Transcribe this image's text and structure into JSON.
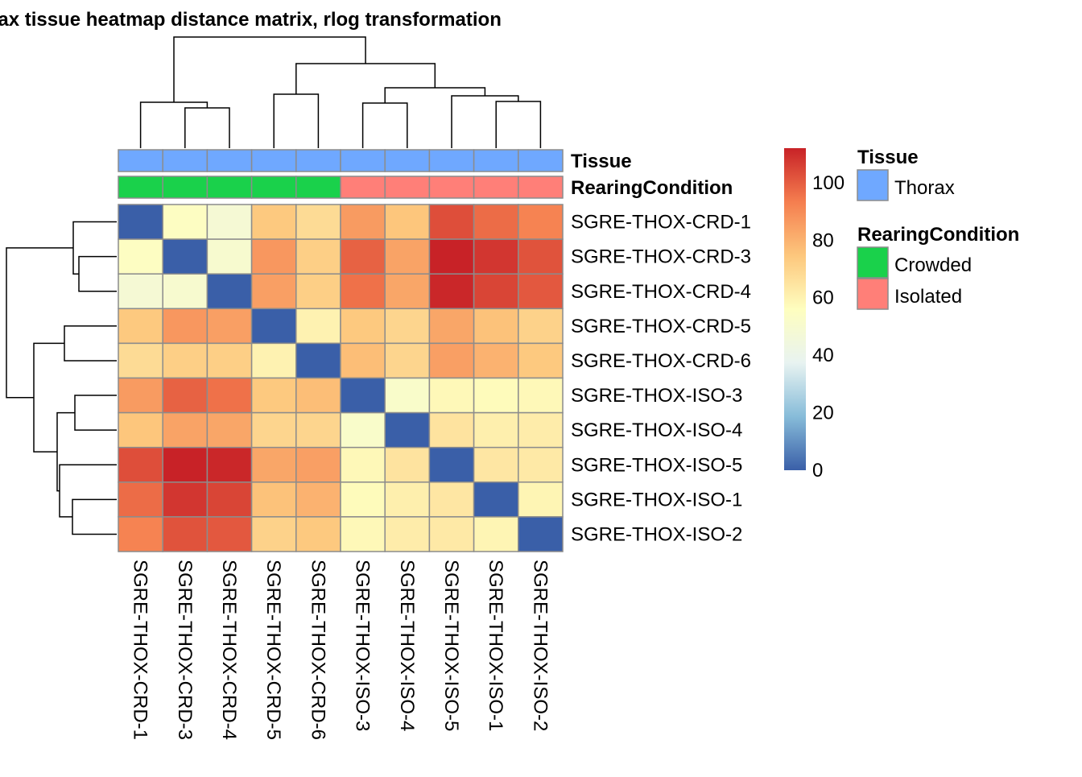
{
  "chart_data": {
    "type": "heatmap",
    "title": "rax tissue heatmap distance matrix, rlog transformation",
    "rows": [
      "SGRE-THOX-CRD-1",
      "SGRE-THOX-CRD-3",
      "SGRE-THOX-CRD-4",
      "SGRE-THOX-CRD-5",
      "SGRE-THOX-CRD-6",
      "SGRE-THOX-ISO-3",
      "SGRE-THOX-ISO-4",
      "SGRE-THOX-ISO-5",
      "SGRE-THOX-ISO-1",
      "SGRE-THOX-ISO-2"
    ],
    "columns": [
      "SGRE-THOX-CRD-1",
      "SGRE-THOX-CRD-3",
      "SGRE-THOX-CRD-4",
      "SGRE-THOX-CRD-5",
      "SGRE-THOX-CRD-6",
      "SGRE-THOX-ISO-3",
      "SGRE-THOX-ISO-4",
      "SGRE-THOX-ISO-5",
      "SGRE-THOX-ISO-1",
      "SGRE-THOX-ISO-2"
    ],
    "values": [
      [
        0,
        55,
        48,
        74,
        68,
        86,
        75,
        103,
        97,
        92
      ],
      [
        55,
        0,
        50,
        87,
        72,
        99,
        84,
        112,
        108,
        102
      ],
      [
        48,
        50,
        0,
        85,
        72,
        96,
        83,
        111,
        105,
        101
      ],
      [
        74,
        87,
        85,
        0,
        60,
        74,
        70,
        83,
        76,
        71
      ],
      [
        68,
        72,
        72,
        60,
        0,
        77,
        70,
        85,
        80,
        74
      ],
      [
        86,
        99,
        96,
        74,
        77,
        0,
        52,
        58,
        57,
        58
      ],
      [
        75,
        84,
        83,
        70,
        70,
        52,
        0,
        65,
        61,
        62
      ],
      [
        103,
        112,
        111,
        83,
        85,
        58,
        65,
        0,
        64,
        63
      ],
      [
        97,
        108,
        105,
        76,
        80,
        57,
        61,
        64,
        0,
        59
      ],
      [
        92,
        102,
        101,
        71,
        74,
        58,
        62,
        63,
        59,
        0
      ]
    ],
    "annotation_tracks": [
      {
        "name": "Tissue",
        "values": [
          "Thorax",
          "Thorax",
          "Thorax",
          "Thorax",
          "Thorax",
          "Thorax",
          "Thorax",
          "Thorax",
          "Thorax",
          "Thorax"
        ]
      },
      {
        "name": "RearingCondition",
        "values": [
          "Crowded",
          "Crowded",
          "Crowded",
          "Crowded",
          "Crowded",
          "Isolated",
          "Isolated",
          "Isolated",
          "Isolated",
          "Isolated"
        ]
      }
    ],
    "annotation_colors": {
      "Thorax": "#6fa8ff",
      "Crowded": "#1ad14b",
      "Isolated": "#ff7f78"
    },
    "colorbar": {
      "ticks": [
        0,
        20,
        40,
        60,
        80,
        100
      ],
      "range": [
        0,
        112
      ],
      "colors": [
        "#3a5fa8",
        "#87bcd9",
        "#e8f3f1",
        "#fefebf",
        "#fdc77d",
        "#f57e4f",
        "#c82227"
      ]
    },
    "legends": [
      {
        "title": "Tissue",
        "items": [
          "Thorax"
        ]
      },
      {
        "title": "RearingCondition",
        "items": [
          "Crowded",
          "Isolated"
        ]
      }
    ],
    "dendrogram": {
      "merge_order": [
        [
          "SGRE-THOX-CRD-3",
          "SGRE-THOX-CRD-4"
        ],
        [
          "SGRE-THOX-CRD-1",
          "CRD-3+CRD-4"
        ],
        [
          "SGRE-THOX-CRD-5",
          "SGRE-THOX-CRD-6"
        ],
        [
          "SGRE-THOX-ISO-1",
          "SGRE-THOX-ISO-2"
        ],
        [
          "SGRE-THOX-ISO-5",
          "ISO-1+ISO-2"
        ],
        [
          "SGRE-THOX-ISO-3",
          "SGRE-THOX-ISO-4"
        ],
        [
          "ISO-3+ISO-4",
          "ISO-5+ISO-1+ISO-2"
        ],
        [
          "CRD-5+CRD-6",
          "ISO group"
        ],
        [
          "CRD-1+CRD-3+CRD-4",
          "rest"
        ]
      ]
    }
  }
}
